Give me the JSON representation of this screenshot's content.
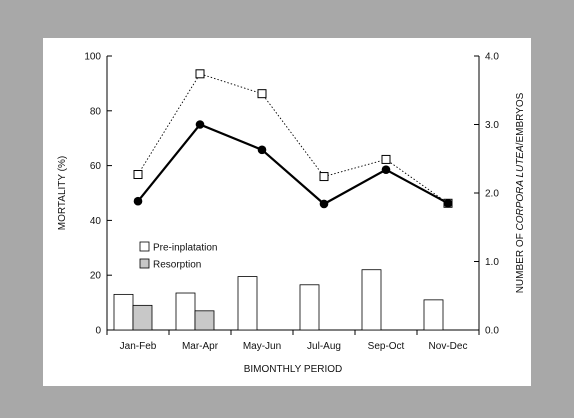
{
  "chart_data": {
    "type": "bar+line",
    "categories": [
      "Jan-Feb",
      "Mar-Apr",
      "May-Jun",
      "Jul-Aug",
      "Sep-Oct",
      "Nov-Dec"
    ],
    "xlabel": "BIMONTHLY PERIOD",
    "ylabel_left": "MORTALITY (%)",
    "ylabel_right_parts": [
      "NUMBER OF ",
      "CORPORA LUTEA",
      "/EMBRYOS"
    ],
    "ylim_left": [
      0,
      100
    ],
    "yticks_left": [
      "0",
      "20",
      "40",
      "60",
      "80",
      "100"
    ],
    "ylim_right": [
      0,
      4
    ],
    "yticks_right": [
      "0.0",
      "1.0",
      "2.0",
      "3.0",
      "4.0"
    ],
    "bar_series": [
      {
        "name": "Pre-inplatation",
        "axis": "left",
        "fill": "#ffffff",
        "values": [
          13,
          13.5,
          19.5,
          16.5,
          22,
          11
        ]
      },
      {
        "name": "Resorption",
        "axis": "left",
        "fill": "#c8c8c8",
        "values": [
          9,
          7,
          null,
          null,
          null,
          null
        ]
      }
    ],
    "line_series": [
      {
        "axis": "right",
        "style": "dotted",
        "marker": "open-square",
        "values": [
          2.27,
          3.74,
          3.45,
          2.24,
          2.49,
          1.85
        ]
      },
      {
        "axis": "right",
        "style": "solid",
        "marker": "filled-circle",
        "values": [
          1.88,
          3.0,
          2.63,
          1.84,
          2.34,
          1.85
        ]
      }
    ],
    "legend": {
      "position": "lower-left",
      "entries": [
        "Pre-inplatation",
        "Resorption"
      ]
    },
    "grid": false
  }
}
